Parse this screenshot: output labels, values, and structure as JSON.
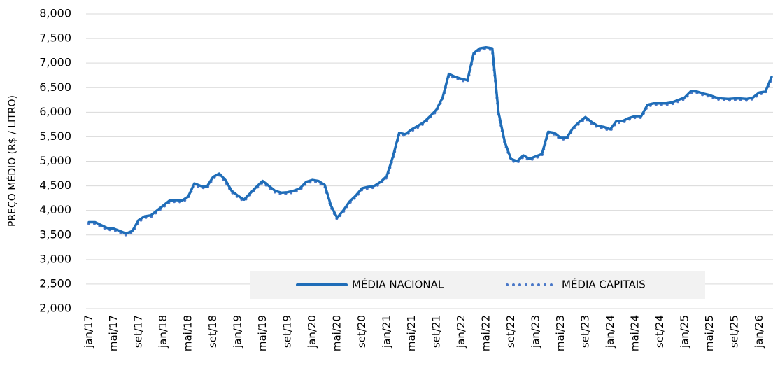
{
  "chart_data": {
    "type": "line",
    "y_label": "PREÇO MÉDIO (R$ / LITRO)",
    "categories": [
      "jan/17",
      null,
      null,
      null,
      "mai/17",
      null,
      null,
      null,
      "set/17",
      null,
      null,
      null,
      "jan/18",
      null,
      null,
      null,
      "mai/18",
      null,
      null,
      null,
      "set/18",
      null,
      null,
      null,
      "jan/19",
      null,
      null,
      null,
      "mai/19",
      null,
      null,
      null,
      "set/19",
      null,
      null,
      null,
      "jan/20",
      null,
      null,
      null,
      "mai/20",
      null,
      null,
      null,
      "set/20",
      null,
      null,
      null,
      "jan/21",
      null,
      null,
      null,
      "mai/21",
      null,
      null,
      null,
      "set/21",
      null,
      null,
      null,
      "jan/22",
      null,
      null,
      null,
      "mai/22",
      null,
      null,
      null,
      "set/22",
      null,
      null,
      null,
      "jan/23",
      null,
      null,
      null,
      "mai/23",
      null,
      null,
      null,
      "set/23",
      null,
      null,
      null,
      "jan/24",
      null,
      null,
      null,
      "mai/24",
      null,
      null,
      null,
      "set/24",
      null,
      null,
      null,
      "jan/25",
      null,
      null,
      null,
      "mai/25",
      null,
      null,
      null,
      "set/25",
      null,
      null,
      null,
      "jan/26",
      null,
      null
    ],
    "series": [
      {
        "name": "MÉDIA NACIONAL",
        "color": "#1f6db8",
        "style": "solid",
        "values": [
          3.76,
          3.76,
          3.7,
          3.64,
          3.63,
          3.58,
          3.53,
          3.58,
          3.8,
          3.88,
          3.9,
          4.0,
          4.1,
          4.2,
          4.21,
          4.2,
          4.28,
          4.55,
          4.5,
          4.48,
          4.68,
          4.75,
          4.62,
          4.4,
          4.3,
          4.22,
          4.35,
          4.48,
          4.6,
          4.5,
          4.4,
          4.36,
          4.37,
          4.4,
          4.45,
          4.58,
          4.62,
          4.6,
          4.52,
          4.1,
          3.85,
          4.0,
          4.18,
          4.3,
          4.45,
          4.48,
          4.5,
          4.58,
          4.7,
          5.1,
          5.58,
          5.55,
          5.65,
          5.72,
          5.8,
          5.92,
          6.05,
          6.3,
          6.78,
          6.72,
          6.68,
          6.65,
          7.2,
          7.3,
          7.32,
          7.3,
          6.0,
          5.4,
          5.05,
          5.0,
          5.12,
          5.05,
          5.1,
          5.15,
          5.6,
          5.58,
          5.48,
          5.48,
          5.68,
          5.8,
          5.9,
          5.8,
          5.72,
          5.7,
          5.65,
          5.82,
          5.82,
          5.88,
          5.92,
          5.92,
          6.15,
          6.18,
          6.18,
          6.18,
          6.2,
          6.25,
          6.3,
          6.43,
          6.42,
          6.38,
          6.35,
          6.3,
          6.28,
          6.27,
          6.28,
          6.28,
          6.27,
          6.3,
          6.4,
          6.42,
          6.72
        ]
      },
      {
        "name": "MÉDIA CAPITAIS",
        "color": "#4a78c8",
        "style": "dotted",
        "values": [
          3.73,
          3.73,
          3.67,
          3.61,
          3.6,
          3.55,
          3.5,
          3.55,
          3.77,
          3.85,
          3.87,
          3.97,
          4.07,
          4.17,
          4.18,
          4.17,
          4.25,
          4.52,
          4.47,
          4.45,
          4.65,
          4.72,
          4.59,
          4.37,
          4.27,
          4.19,
          4.32,
          4.45,
          4.57,
          4.47,
          4.37,
          4.33,
          4.34,
          4.37,
          4.42,
          4.55,
          4.59,
          4.57,
          4.49,
          4.07,
          3.82,
          3.97,
          4.15,
          4.27,
          4.42,
          4.45,
          4.47,
          4.55,
          4.67,
          5.07,
          5.55,
          5.52,
          5.62,
          5.69,
          5.77,
          5.89,
          6.02,
          6.27,
          6.75,
          6.69,
          6.65,
          6.62,
          7.17,
          7.27,
          7.29,
          7.27,
          5.97,
          5.37,
          5.02,
          4.97,
          5.09,
          5.02,
          5.07,
          5.12,
          5.57,
          5.55,
          5.45,
          5.45,
          5.65,
          5.77,
          5.87,
          5.77,
          5.69,
          5.67,
          5.62,
          5.79,
          5.79,
          5.85,
          5.89,
          5.89,
          6.12,
          6.15,
          6.15,
          6.15,
          6.17,
          6.22,
          6.27,
          6.4,
          6.39,
          6.35,
          6.32,
          6.27,
          6.25,
          6.24,
          6.25,
          6.25,
          6.24,
          6.27,
          6.37,
          6.39,
          6.69
        ]
      }
    ],
    "ylim": [
      2,
      8
    ],
    "yticks": [
      {
        "value": 2,
        "label": "2,000"
      },
      {
        "value": 2.5,
        "label": "2,500"
      },
      {
        "value": 3,
        "label": "3,000"
      },
      {
        "value": 3.5,
        "label": "3,500"
      },
      {
        "value": 4,
        "label": "4,000"
      },
      {
        "value": 4.5,
        "label": "4,500"
      },
      {
        "value": 5,
        "label": "5,000"
      },
      {
        "value": 5.5,
        "label": "5,500"
      },
      {
        "value": 6,
        "label": "6,000"
      },
      {
        "value": 6.5,
        "label": "6,500"
      },
      {
        "value": 7,
        "label": "7,000"
      },
      {
        "value": 7.5,
        "label": "7,500"
      },
      {
        "value": 8,
        "label": "8,000"
      }
    ],
    "grid": true,
    "legend": "bottom"
  }
}
